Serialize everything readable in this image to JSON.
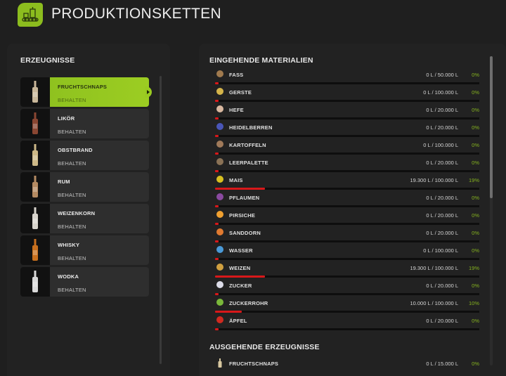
{
  "header": {
    "title": "PRODUKTIONSKETTEN",
    "icon": "factory-production-icon",
    "accent_color": "#8cbd1e"
  },
  "products_panel": {
    "title": "ERZEUGNISSE",
    "items": [
      {
        "name": "FRUCHTSCHNAPS",
        "status": "BEHALTEN",
        "selected": true,
        "bottle_color": "#c9b79a"
      },
      {
        "name": "LIKÖR",
        "status": "BEHALTEN",
        "selected": false,
        "bottle_color": "#8a4632"
      },
      {
        "name": "OBSTBRAND",
        "status": "BEHALTEN",
        "selected": false,
        "bottle_color": "#cdb887"
      },
      {
        "name": "RUM",
        "status": "BEHALTEN",
        "selected": false,
        "bottle_color": "#b48a62"
      },
      {
        "name": "WEIZENKORN",
        "status": "BEHALTEN",
        "selected": false,
        "bottle_color": "#d8d4cc"
      },
      {
        "name": "WHISKY",
        "status": "BEHALTEN",
        "selected": false,
        "bottle_color": "#c8701e"
      },
      {
        "name": "WODKA",
        "status": "BEHALTEN",
        "selected": false,
        "bottle_color": "#dadada"
      }
    ]
  },
  "materials_panel": {
    "incoming_title": "EINGEHENDE MATERIALIEN",
    "incoming": [
      {
        "name": "FASS",
        "amount": "0 L / 50.000 L",
        "percent": "0%",
        "fill": 0,
        "icon": "barrel-icon",
        "glyph": "▮",
        "color": "#a07a4e"
      },
      {
        "name": "GERSTE",
        "amount": "0 L / 100.000 L",
        "percent": "0%",
        "fill": 0,
        "icon": "barley-icon",
        "glyph": "✾",
        "color": "#d4b44a"
      },
      {
        "name": "HEFE",
        "amount": "0 L / 20.000 L",
        "percent": "0%",
        "fill": 0,
        "icon": "yeast-icon",
        "glyph": "●",
        "color": "#d9b8a0"
      },
      {
        "name": "HEIDELBERREN",
        "amount": "0 L / 20.000 L",
        "percent": "0%",
        "fill": 0,
        "icon": "blueberries-icon",
        "glyph": "●",
        "color": "#4a56b8"
      },
      {
        "name": "KARTOFFELN",
        "amount": "0 L / 100.000 L",
        "percent": "0%",
        "fill": 0,
        "icon": "potato-icon",
        "glyph": "●",
        "color": "#a07a5a"
      },
      {
        "name": "LEERPALETTE",
        "amount": "0 L / 20.000 L",
        "percent": "0%",
        "fill": 0,
        "icon": "empty-pallet-icon",
        "glyph": "▦",
        "color": "#8a7256"
      },
      {
        "name": "MAIS",
        "amount": "19.300 L / 100.000 L",
        "percent": "19%",
        "fill": 19,
        "icon": "corn-icon",
        "glyph": "●",
        "color": "#d8c020"
      },
      {
        "name": "PFLAUMEN",
        "amount": "0 L / 20.000 L",
        "percent": "0%",
        "fill": 0,
        "icon": "plum-icon",
        "glyph": "●",
        "color": "#8a4aa0"
      },
      {
        "name": "PIRSICHE",
        "amount": "0 L / 20.000 L",
        "percent": "0%",
        "fill": 0,
        "icon": "peach-icon",
        "glyph": "●",
        "color": "#f0a030"
      },
      {
        "name": "SANDDORN",
        "amount": "0 L / 20.000 L",
        "percent": "0%",
        "fill": 0,
        "icon": "sea-buckthorn-icon",
        "glyph": "●",
        "color": "#e07a30"
      },
      {
        "name": "WASSER",
        "amount": "0 L / 100.000 L",
        "percent": "0%",
        "fill": 0,
        "icon": "water-drop-icon",
        "glyph": "💧",
        "color": "#4a9ad8"
      },
      {
        "name": "WEIZEN",
        "amount": "19.300 L / 100.000 L",
        "percent": "19%",
        "fill": 19,
        "icon": "wheat-icon",
        "glyph": "✾",
        "color": "#d0a040"
      },
      {
        "name": "ZUCKER",
        "amount": "0 L / 20.000 L",
        "percent": "0%",
        "fill": 0,
        "icon": "sugar-cubes-icon",
        "glyph": "■",
        "color": "#dcdce8"
      },
      {
        "name": "ZUCKERROHR",
        "amount": "10.000 L / 100.000 L",
        "percent": "10%",
        "fill": 10,
        "icon": "sugarcane-icon",
        "glyph": "╲",
        "color": "#7ab83a"
      },
      {
        "name": "ÄPFEL",
        "amount": "0 L / 20.000 L",
        "percent": "0%",
        "fill": 0,
        "icon": "apple-icon",
        "glyph": "●",
        "color": "#d02a20"
      }
    ],
    "outgoing_title": "AUSGEHENDE ERZEUGNISSE",
    "outgoing": [
      {
        "name": "FRUCHTSCHNAPS",
        "amount": "0 L / 15.000 L",
        "percent": "0%",
        "icon": "fruit-schnapps-bottle-icon",
        "color": "#d8c8a0"
      }
    ],
    "bar_color": "#d8181a",
    "percent_color": "#86b41f"
  }
}
